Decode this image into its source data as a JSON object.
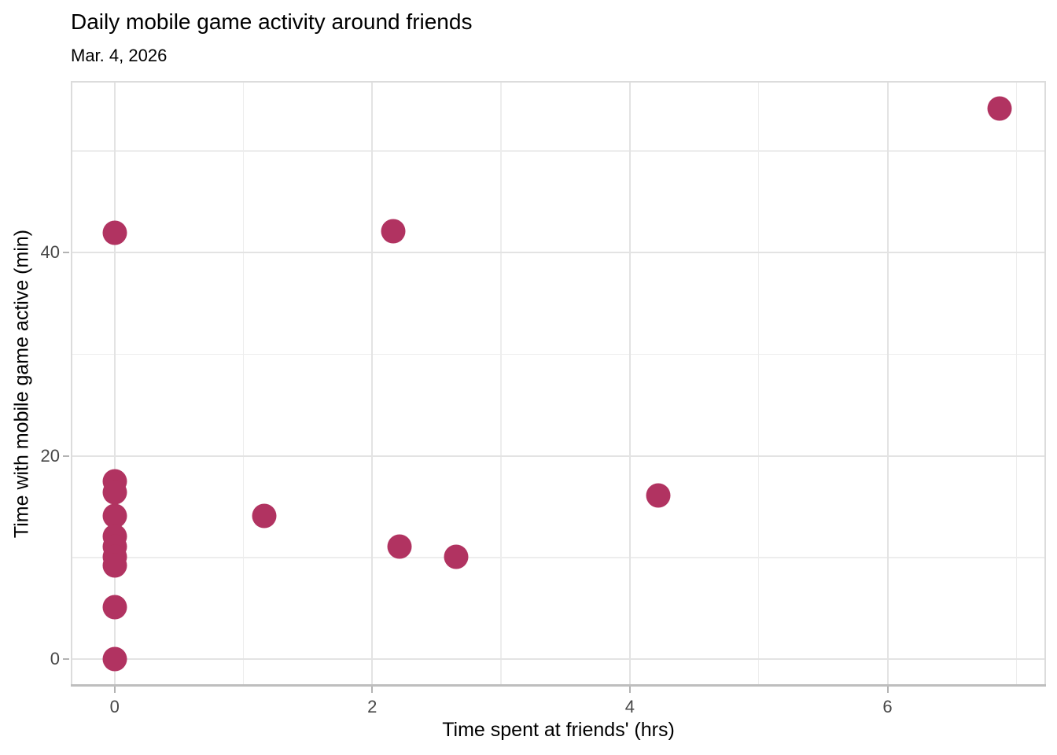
{
  "chart_data": {
    "type": "scatter",
    "title": "Daily mobile game activity around friends",
    "subtitle": "Mar. 4, 2026",
    "xlabel": "Time spent at friends' (hrs)",
    "ylabel": "Time with mobile game active (min)",
    "xlim": [
      -0.34,
      7.23
    ],
    "ylim": [
      -2.7,
      56.9
    ],
    "x_major_ticks": [
      0,
      2,
      4,
      6
    ],
    "x_minor_ticks": [
      1,
      3,
      5,
      7
    ],
    "y_major_ticks": [
      0,
      20,
      40
    ],
    "y_minor_ticks": [
      10,
      30,
      50
    ],
    "grid": true,
    "legend": false,
    "points": [
      {
        "x": 0,
        "y": 42
      },
      {
        "x": 0,
        "y": 17.5
      },
      {
        "x": 0,
        "y": 16.4
      },
      {
        "x": 0,
        "y": 14.1
      },
      {
        "x": 0,
        "y": 12.1
      },
      {
        "x": 0,
        "y": 11.1
      },
      {
        "x": 0,
        "y": 10.1
      },
      {
        "x": 0,
        "y": 9.2
      },
      {
        "x": 0,
        "y": 5.1
      },
      {
        "x": 0,
        "y": 0
      },
      {
        "x": 1.16,
        "y": 14.1
      },
      {
        "x": 2.16,
        "y": 42.1
      },
      {
        "x": 2.21,
        "y": 11.1
      },
      {
        "x": 2.65,
        "y": 10.1
      },
      {
        "x": 4.22,
        "y": 16.1
      },
      {
        "x": 6.87,
        "y": 54.2
      }
    ],
    "colors": {
      "point": "#B13361",
      "grid_major": "#E3E3E3",
      "grid_minor": "#EDEDED",
      "panel_border": "#DCDCDC",
      "axis_line": "#BEBEBE",
      "tick_mark": "#B3B3B3",
      "tick_label": "#474747",
      "text": "#000000",
      "background": "#FFFFFF"
    }
  }
}
